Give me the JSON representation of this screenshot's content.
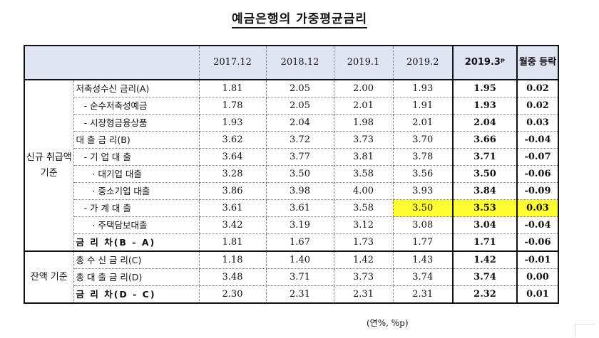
{
  "title": "예금은행의 가중평균금리",
  "unit": "(연%, %p)",
  "columns": [
    "2017.12",
    "2018.12",
    "2019.1",
    "2019.2",
    "2019.3ᵖ",
    "월중 등락"
  ],
  "groups": {
    "new": "신규 취급액 기준",
    "balance": "잔액 기준"
  },
  "rows": [
    {
      "label": "저축성수신 금리(A)",
      "values": [
        "1.81",
        "2.05",
        "2.00",
        "1.93",
        "1.95",
        "0.02"
      ]
    },
    {
      "label": "- 순수저축성예금",
      "values": [
        "1.78",
        "2.05",
        "2.01",
        "1.91",
        "1.93",
        "0.02"
      ]
    },
    {
      "label": "- 시장형금융상품",
      "values": [
        "1.93",
        "2.04",
        "1.98",
        "2.01",
        "2.04",
        "0.03"
      ]
    },
    {
      "label": "대 출 금 리(B)",
      "values": [
        "3.62",
        "3.72",
        "3.73",
        "3.70",
        "3.66",
        "-0.04"
      ]
    },
    {
      "label": "- 기 업 대 출",
      "values": [
        "3.64",
        "3.77",
        "3.81",
        "3.78",
        "3.71",
        "-0.07"
      ]
    },
    {
      "label": "· 대기업 대출",
      "values": [
        "3.28",
        "3.50",
        "3.58",
        "3.56",
        "3.50",
        "-0.06"
      ]
    },
    {
      "label": "· 중소기업 대출",
      "values": [
        "3.86",
        "3.98",
        "4.00",
        "3.93",
        "3.84",
        "-0.09"
      ]
    },
    {
      "label": "- 가 계 대 출",
      "values": [
        "3.61",
        "3.61",
        "3.58",
        "3.50",
        "3.53",
        "0.03"
      ]
    },
    {
      "label": "· 주택담보대출",
      "values": [
        "3.42",
        "3.19",
        "3.12",
        "3.08",
        "3.04",
        "-0.04"
      ]
    },
    {
      "label": "금 리 차(B - A)",
      "values": [
        "1.81",
        "1.67",
        "1.73",
        "1.77",
        "1.71",
        "-0.06"
      ]
    },
    {
      "label": "총 수 신 금 리(C)",
      "values": [
        "1.18",
        "1.40",
        "1.42",
        "1.43",
        "1.42",
        "-0.01"
      ]
    },
    {
      "label": "총 대 출 금 리(D)",
      "values": [
        "3.48",
        "3.71",
        "3.73",
        "3.74",
        "3.74",
        "0.00"
      ]
    },
    {
      "label": "금 리 차(D - C)",
      "values": [
        "2.30",
        "2.31",
        "2.31",
        "2.31",
        "2.32",
        "0.01"
      ]
    }
  ],
  "highlight_color": "#ffff33"
}
